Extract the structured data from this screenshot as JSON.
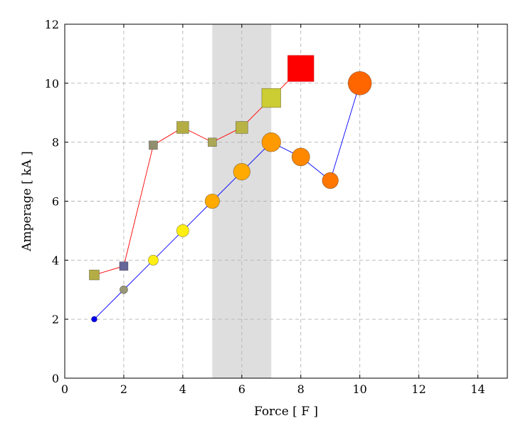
{
  "chart_data": {
    "type": "scatter",
    "xlabel": "Force [ F ]",
    "ylabel": "Amperage [ kA ]",
    "xlim": [
      0,
      15
    ],
    "ylim": [
      0,
      12
    ],
    "x_ticks": [
      0,
      2,
      4,
      6,
      8,
      10,
      12,
      14
    ],
    "y_ticks": [
      0,
      2,
      4,
      6,
      8,
      10,
      12
    ],
    "grid": true,
    "shaded_region": {
      "x_from": 5,
      "x_to": 7,
      "color": "#dedede"
    },
    "series": [
      {
        "marker": "circle",
        "line_color": "#0000ff",
        "points": [
          {
            "x": 1,
            "y": 2,
            "color": "#0000ee"
          },
          {
            "x": 2,
            "y": 3,
            "color": "#999977"
          },
          {
            "x": 3,
            "y": 4,
            "color": "#ffee11"
          },
          {
            "x": 4,
            "y": 5,
            "color": "#ffee11"
          },
          {
            "x": 5,
            "y": 6,
            "color": "#ffaa00"
          },
          {
            "x": 6,
            "y": 7,
            "color": "#ffaa00"
          },
          {
            "x": 7,
            "y": 8,
            "color": "#ff9900"
          },
          {
            "x": 8,
            "y": 7.5,
            "color": "#ff8800"
          },
          {
            "x": 9,
            "y": 6.7,
            "color": "#ff7700"
          },
          {
            "x": 10,
            "y": 10,
            "color": "#ff6600"
          }
        ]
      },
      {
        "marker": "square",
        "line_color": "#ff0000",
        "points": [
          {
            "x": 1,
            "y": 3.5,
            "color": "#b3ad44"
          },
          {
            "x": 2,
            "y": 3.8,
            "color": "#666699"
          },
          {
            "x": 3,
            "y": 7.9,
            "color": "#8f8f6f"
          },
          {
            "x": 4,
            "y": 8.5,
            "color": "#b3ad44"
          },
          {
            "x": 5,
            "y": 8,
            "color": "#aaa755"
          },
          {
            "x": 6,
            "y": 8.5,
            "color": "#b8b344"
          },
          {
            "x": 7,
            "y": 9.5,
            "color": "#cccc33"
          },
          {
            "x": 8,
            "y": 10.5,
            "color": "#ff0000"
          }
        ]
      }
    ]
  }
}
